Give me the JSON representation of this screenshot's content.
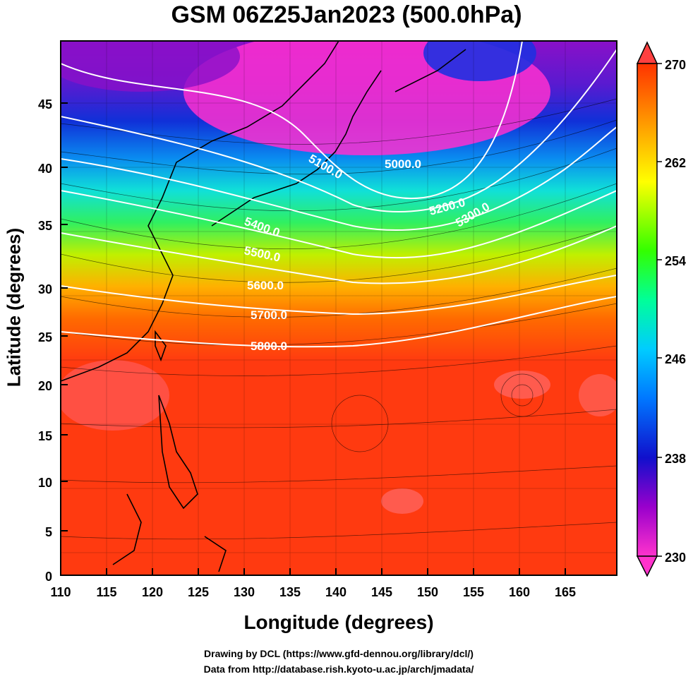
{
  "title": "GSM 06Z25Jan2023 (500.0hPa)",
  "xaxis": {
    "label": "Longitude (degrees)",
    "ticks": [
      "110",
      "115",
      "120",
      "125",
      "130",
      "135",
      "140",
      "145",
      "150",
      "155",
      "160",
      "165"
    ]
  },
  "yaxis": {
    "label": "Latitude  (degrees)",
    "ticks": [
      "0",
      "5",
      "10",
      "15",
      "20",
      "25",
      "30",
      "35",
      "40",
      "45"
    ]
  },
  "colorbar": {
    "ticks": [
      "230",
      "238",
      "246",
      "254",
      "262",
      "270"
    ],
    "colors": [
      "#ff33cc",
      "#9900cc",
      "#0000cc",
      "#0077ff",
      "#00ccff",
      "#00ff99",
      "#33ff00",
      "#ffff00",
      "#ff9900",
      "#ff3300"
    ]
  },
  "contour_labels": [
    "5000.0",
    "5100.0",
    "5200.0",
    "5300.0",
    "5400.0",
    "5500.0",
    "5600.0",
    "5700.0",
    "5800.0"
  ],
  "credits": {
    "line1": "Drawing by DCL (https://www.gfd-dennou.org/library/dcl/)",
    "line2": "Data from http://database.rish.kyoto-u.ac.jp/arch/jmadata/"
  }
}
